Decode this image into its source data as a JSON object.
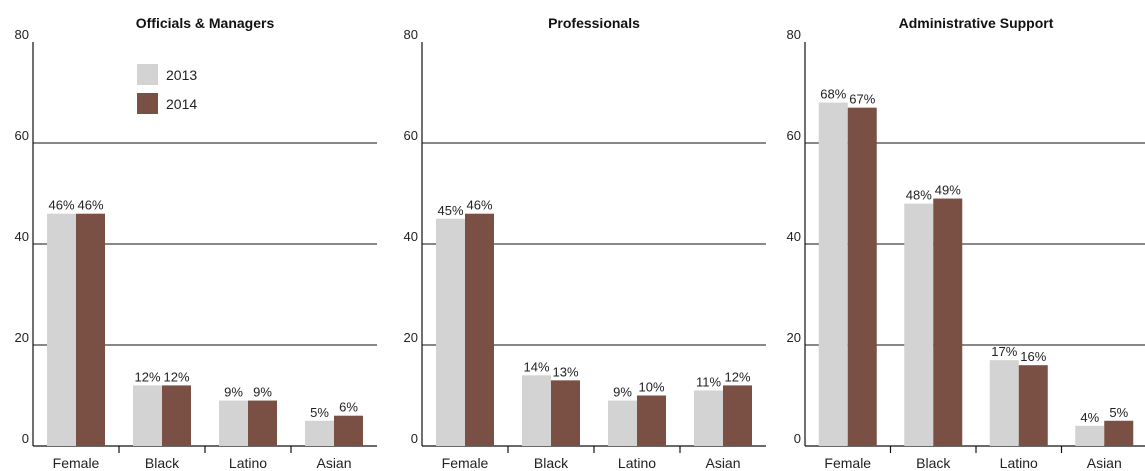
{
  "colors": {
    "series_2013": "#d3d3d3",
    "series_2014": "#7a5044",
    "axis": "#111111"
  },
  "legend": [
    {
      "label": "2013",
      "color": "#d3d3d3"
    },
    {
      "label": "2014",
      "color": "#7a5044"
    }
  ],
  "chart_data": [
    {
      "type": "bar",
      "title": "Officials & Managers",
      "categories": [
        "Female",
        "Black",
        "Latino",
        "Asian"
      ],
      "series": [
        {
          "name": "2013",
          "values": [
            46,
            12,
            9,
            5
          ],
          "labels": [
            "46%",
            "12%",
            "9%",
            "5%"
          ]
        },
        {
          "name": "2014",
          "values": [
            46,
            12,
            9,
            6
          ],
          "labels": [
            "46%",
            "12%",
            "9%",
            "6%"
          ]
        }
      ],
      "ylim": [
        0,
        80
      ],
      "yticks": [
        0,
        20,
        40,
        60,
        80
      ],
      "grid": true,
      "legend_position": "top-right"
    },
    {
      "type": "bar",
      "title": "Professionals",
      "categories": [
        "Female",
        "Black",
        "Latino",
        "Asian"
      ],
      "series": [
        {
          "name": "2013",
          "values": [
            45,
            14,
            9,
            11
          ],
          "labels": [
            "45%",
            "14%",
            "9%",
            "11%"
          ]
        },
        {
          "name": "2014",
          "values": [
            46,
            13,
            10,
            12
          ],
          "labels": [
            "46%",
            "13%",
            "10%",
            "12%"
          ]
        }
      ],
      "ylim": [
        0,
        80
      ],
      "yticks": [
        0,
        20,
        40,
        60,
        80
      ],
      "grid": true
    },
    {
      "type": "bar",
      "title": "Administrative Support",
      "categories": [
        "Female",
        "Black",
        "Latino",
        "Asian"
      ],
      "series": [
        {
          "name": "2013",
          "values": [
            68,
            48,
            17,
            4
          ],
          "labels": [
            "68%",
            "48%",
            "17%",
            "4%"
          ]
        },
        {
          "name": "2014",
          "values": [
            67,
            49,
            16,
            5
          ],
          "labels": [
            "67%",
            "49%",
            "16%",
            "5%"
          ]
        }
      ],
      "ylim": [
        0,
        80
      ],
      "yticks": [
        0,
        20,
        40,
        60,
        80
      ],
      "grid": true
    }
  ]
}
